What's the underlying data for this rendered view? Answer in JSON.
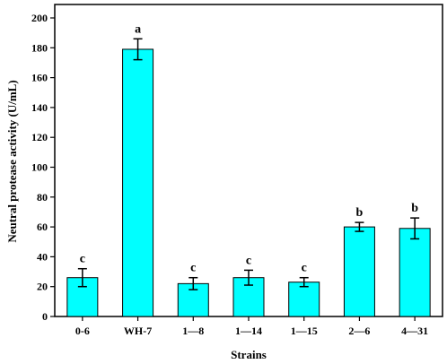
{
  "chart_data": {
    "type": "bar",
    "title": "",
    "xlabel": "Strains",
    "ylabel": "Neutral protease activity (U/mL)",
    "ylim": [
      0,
      200
    ],
    "yticks": [
      0,
      20,
      40,
      60,
      80,
      100,
      120,
      140,
      160,
      180,
      200
    ],
    "categories": [
      "0-6",
      "WH-7",
      "1—8",
      "1—14",
      "1—15",
      "2—6",
      "4—31"
    ],
    "values": [
      26,
      179,
      22,
      26,
      23,
      60,
      59
    ],
    "errors": [
      6,
      7,
      4,
      5,
      3,
      3,
      7
    ],
    "significance_letters": [
      "c",
      "a",
      "c",
      "c",
      "c",
      "b",
      "b"
    ],
    "bar_color": "#00FFFF",
    "bar_edge_color": "#000000",
    "grid": false,
    "legend": "none"
  }
}
